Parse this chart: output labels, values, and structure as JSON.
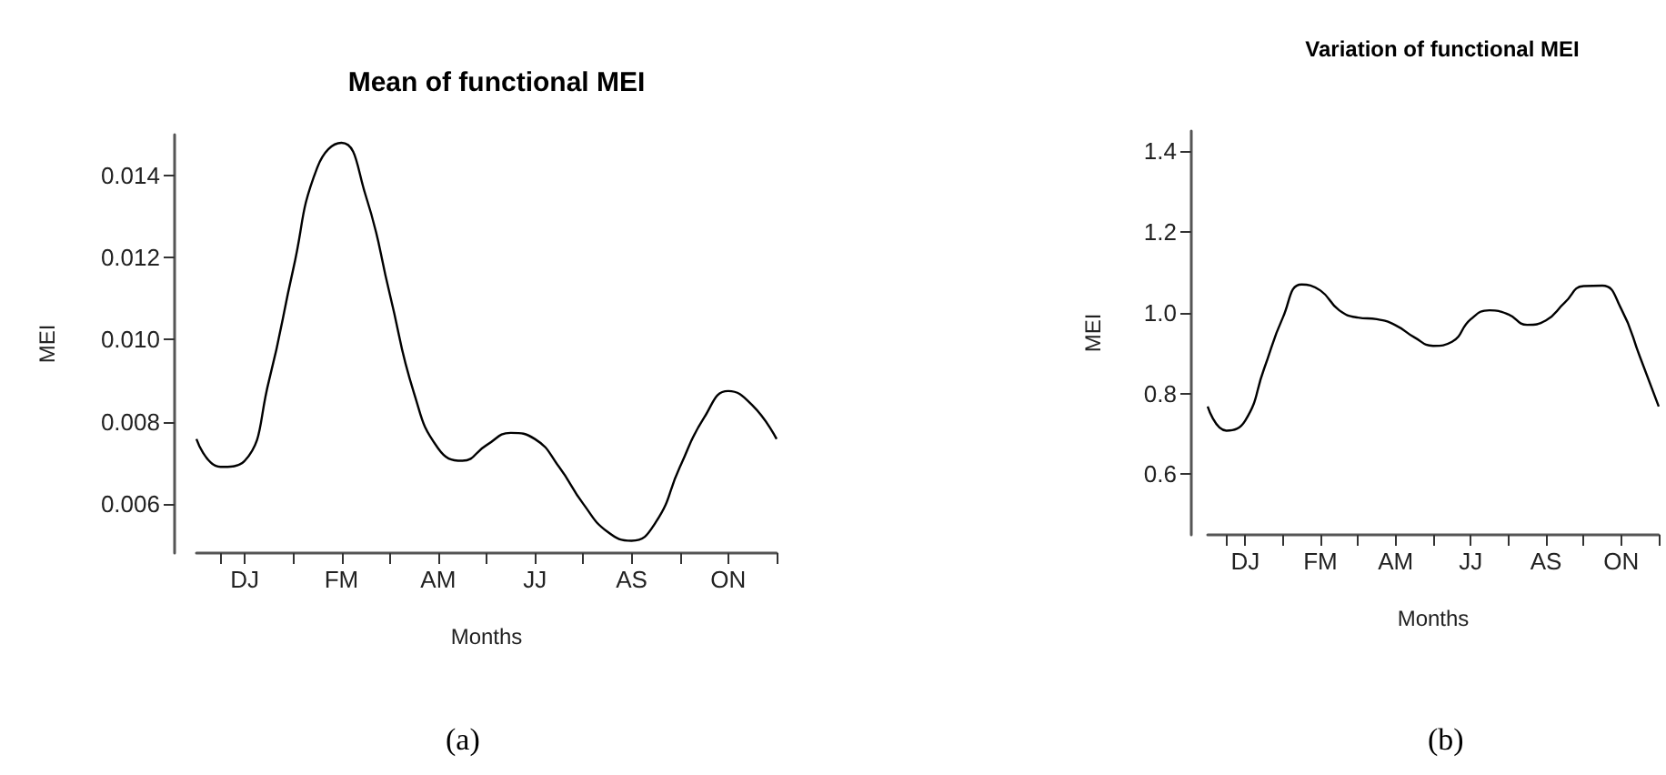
{
  "chart_data": [
    {
      "type": "line",
      "title": "Mean of functional MEI",
      "xlabel": "Months",
      "ylabel": "MEI",
      "marker": "none",
      "line_style": "solid",
      "annotations": [
        "(a)"
      ],
      "categories": [
        null,
        null,
        "DJ",
        null,
        null,
        null,
        "FM",
        null,
        null,
        null,
        "AM",
        null,
        null,
        null,
        "JJ",
        null,
        null,
        null,
        "AS",
        null,
        null,
        null,
        "ON",
        null,
        null
      ],
      "series": [
        {
          "color": "#000000",
          "values": [
            0.00758,
            0.0069,
            0.00705,
            0.009,
            0.01171,
            0.0142,
            0.0148,
            0.01352,
            0.01111,
            0.0087,
            0.00735,
            0.00705,
            0.00743,
            0.00773,
            0.00758,
            0.0069,
            0.006,
            0.00532,
            0.0051,
            0.00555,
            0.0069,
            0.0081,
            0.00875,
            0.0084,
            0.00758
          ]
        }
      ],
      "ylim": [
        0.0048,
        0.015
      ],
      "yticks": [
        0.006,
        0.008,
        {
          "value": 0.01,
          "label": "0.010"
        },
        0.012,
        0.014
      ]
    },
    {
      "type": "line",
      "title": "Variation of functional MEI",
      "xlabel": "Months",
      "ylabel": "MEI",
      "marker": "none",
      "line_style": "solid",
      "annotations": [
        "(b)"
      ],
      "categories": [
        null,
        null,
        "DJ",
        null,
        null,
        null,
        "FM",
        null,
        null,
        null,
        "AM",
        null,
        null,
        null,
        "JJ",
        null,
        null,
        null,
        "AS",
        null,
        null,
        null,
        "ON",
        null,
        null
      ],
      "series": [
        {
          "color": "#000000",
          "values": [
            0.768,
            0.708,
            0.733,
            0.861,
            0.988,
            1.07,
            1.055,
            1.006,
            0.988,
            0.984,
            0.969,
            0.939,
            0.918,
            0.928,
            0.984,
            1.006,
            0.996,
            0.97,
            0.981,
            1.025,
            1.066,
            1.067,
            1.01,
            0.891,
            0.768
          ]
        }
      ],
      "ylim": [
        0.45,
        1.45
      ],
      "yticks": [
        0.6,
        0.8,
        {
          "value": 1,
          "label": "1.0"
        },
        1.2,
        1.4
      ]
    }
  ]
}
